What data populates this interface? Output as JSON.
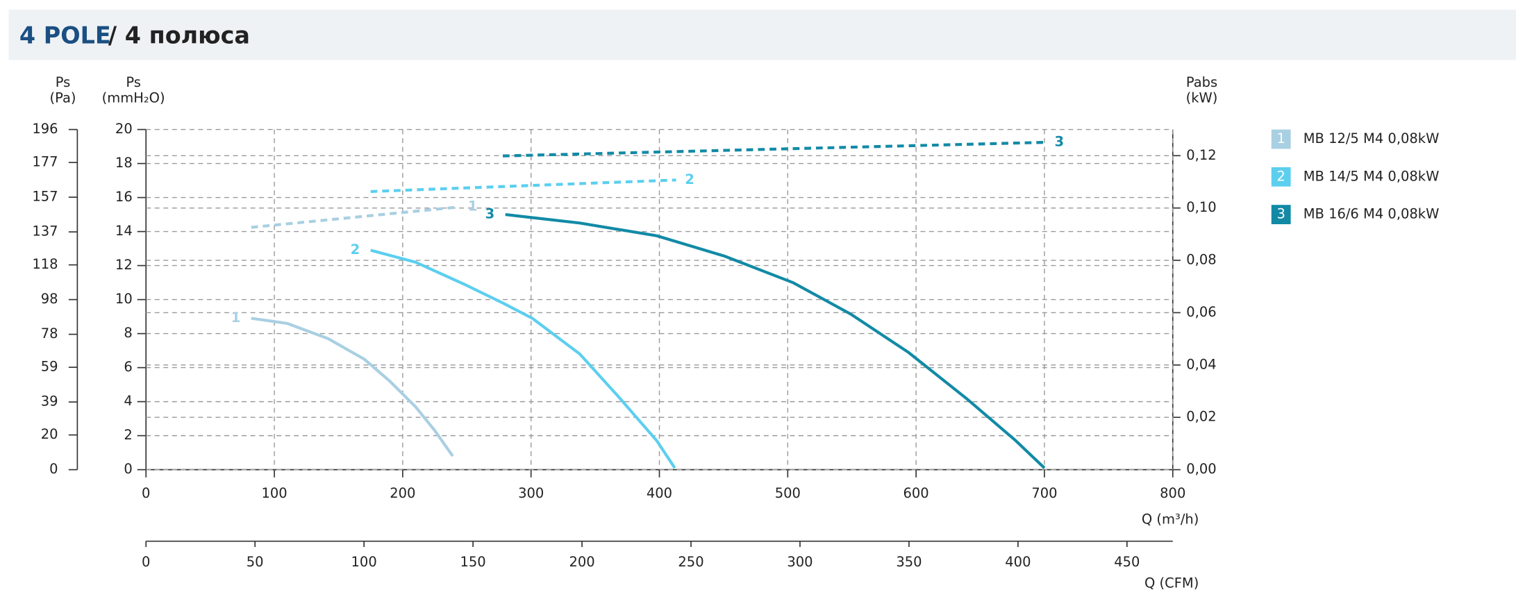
{
  "header": {
    "title": "4 POLE",
    "subtitle": "/ 4 полюса"
  },
  "chart_data": {
    "type": "line",
    "y_label": "Ps",
    "y_unit": "(mmH₂O)",
    "pa_label": "Ps",
    "pa_unit": "(Pa)",
    "y2_label": "Pabs",
    "y2_unit": "(kW)",
    "x_label": "Q (m³/h)",
    "cfm_label": "Q (CFM)",
    "xlim": [
      0,
      800
    ],
    "xticks": [
      0,
      100,
      200,
      300,
      400,
      500,
      600,
      700,
      800
    ],
    "ylim": [
      0,
      20
    ],
    "yticks": [
      0,
      2,
      4,
      6,
      8,
      10,
      12,
      14,
      16,
      18,
      20
    ],
    "pa_ylim": [
      0,
      196
    ],
    "pa_yticks": [
      0,
      20,
      39,
      59,
      78,
      98,
      118,
      137,
      157,
      177,
      196
    ],
    "y2lim": [
      0,
      0.13
    ],
    "y2ticks": [
      {
        "value": 0,
        "label": "0,00"
      },
      {
        "value": 0.02,
        "label": "0,02"
      },
      {
        "value": 0.04,
        "label": "0,04"
      },
      {
        "value": 0.06,
        "label": "0,06"
      },
      {
        "value": 0.08,
        "label": "0,08"
      },
      {
        "value": 0.1,
        "label": "0,10"
      },
      {
        "value": 0.12,
        "label": "0,12"
      }
    ],
    "cfm_xlim": [
      0,
      471
    ],
    "cfm_xticks": [
      0,
      50,
      100,
      150,
      200,
      250,
      300,
      350,
      400,
      450
    ],
    "grid": true,
    "series": [
      {
        "name": "MB 12/5 M4 0,08kW",
        "label": "1",
        "color": "#a9cfe2",
        "x": [
          82,
          110,
          142,
          170,
          190,
          210,
          225,
          239
        ],
        "values": [
          8.9,
          8.6,
          7.7,
          6.5,
          5.2,
          3.7,
          2.3,
          0.8
        ],
        "power_x": [
          82,
          244
        ],
        "power_values": [
          0.0926,
          0.1004
        ]
      },
      {
        "name": "MB 14/5 M4 0,08kW",
        "label": "2",
        "color": "#5ccfef",
        "x": [
          175,
          210,
          248,
          278,
          301,
          338,
          368,
          398,
          412
        ],
        "values": [
          12.9,
          12.2,
          10.9,
          9.8,
          8.9,
          6.8,
          4.3,
          1.7,
          0.1
        ],
        "power_x": [
          175,
          413
        ],
        "power_values": [
          0.1063,
          0.1107
        ]
      },
      {
        "name": "MB 16/6 M4 0,08kW",
        "label": "3",
        "color": "#128aa6",
        "x": [
          280,
          338,
          398,
          451,
          504,
          549,
          594,
          639,
          677,
          700
        ],
        "values": [
          15.0,
          14.5,
          13.75,
          12.55,
          11.0,
          9.15,
          6.9,
          4.2,
          1.75,
          0.1
        ],
        "power_x": [
          278,
          701
        ],
        "power_values": [
          0.1199,
          0.1251
        ]
      }
    ]
  }
}
